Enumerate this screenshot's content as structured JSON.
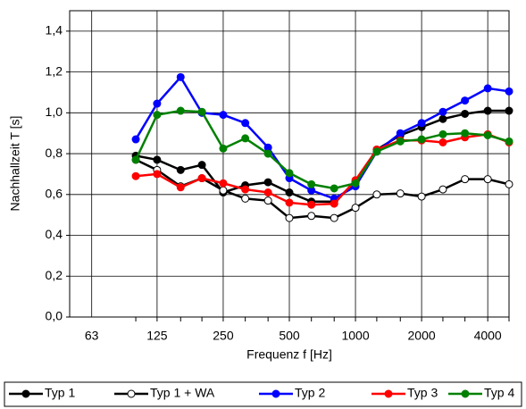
{
  "chart_data": {
    "type": "line",
    "x_label": "Frequenz f [Hz]",
    "y_label": "Nachhallzeit T [s]",
    "x": [
      100,
      125,
      160,
      200,
      250,
      315,
      400,
      500,
      630,
      800,
      1000,
      1250,
      1600,
      2000,
      2500,
      3150,
      4000,
      5000
    ],
    "xlim": [
      50,
      5000
    ],
    "xticks": [
      63,
      125,
      250,
      500,
      1000,
      2000,
      4000
    ],
    "xlog": true,
    "ylim": [
      0,
      1.5
    ],
    "yticks": [
      {
        "value": 0,
        "label": "0,0"
      },
      {
        "value": 0.2,
        "label": "0,2"
      },
      {
        "value": 0.4,
        "label": "0,4"
      },
      {
        "value": 0.6,
        "label": "0,6"
      },
      {
        "value": 0.8,
        "label": "0,8"
      },
      {
        "value": 1.0,
        "label": "1,0"
      },
      {
        "value": 1.2,
        "label": "1,2"
      },
      {
        "value": 1.4,
        "label": "1,4"
      }
    ],
    "grid": true,
    "legend": "bottom",
    "series": [
      {
        "name": "Typ 1",
        "color": "#000000",
        "marker_fill": "#000000",
        "values": [
          0.79,
          0.77,
          0.72,
          0.745,
          0.61,
          0.645,
          0.66,
          0.61,
          0.565,
          0.565,
          0.66,
          0.82,
          0.89,
          0.93,
          0.97,
          0.995,
          1.01,
          1.01
        ]
      },
      {
        "name": "Typ 1 + WA",
        "color": "#000000",
        "marker_fill": "#ffffff",
        "values": [
          0.77,
          0.72,
          0.64,
          0.68,
          0.62,
          0.58,
          0.57,
          0.485,
          0.495,
          0.485,
          0.535,
          0.6,
          0.605,
          0.59,
          0.625,
          0.675,
          0.675,
          0.65
        ]
      },
      {
        "name": "Typ 2",
        "color": "#0000ff",
        "marker_fill": "#0000ff",
        "values": [
          0.87,
          1.045,
          1.175,
          1.0,
          0.99,
          0.95,
          0.83,
          0.68,
          0.62,
          0.58,
          0.64,
          0.81,
          0.9,
          0.95,
          1.005,
          1.06,
          1.12,
          1.105
        ]
      },
      {
        "name": "Typ 3",
        "color": "#ff0000",
        "marker_fill": "#ff0000",
        "values": [
          0.69,
          0.7,
          0.635,
          0.68,
          0.655,
          0.625,
          0.61,
          0.56,
          0.55,
          0.555,
          0.67,
          0.82,
          0.865,
          0.865,
          0.855,
          0.88,
          0.895,
          0.855
        ]
      },
      {
        "name": "Typ 4",
        "color": "#008000",
        "marker_fill": "#008000",
        "values": [
          0.77,
          0.99,
          1.01,
          1.005,
          0.825,
          0.875,
          0.8,
          0.705,
          0.65,
          0.63,
          0.655,
          0.81,
          0.86,
          0.87,
          0.895,
          0.9,
          0.89,
          0.86
        ]
      }
    ]
  }
}
